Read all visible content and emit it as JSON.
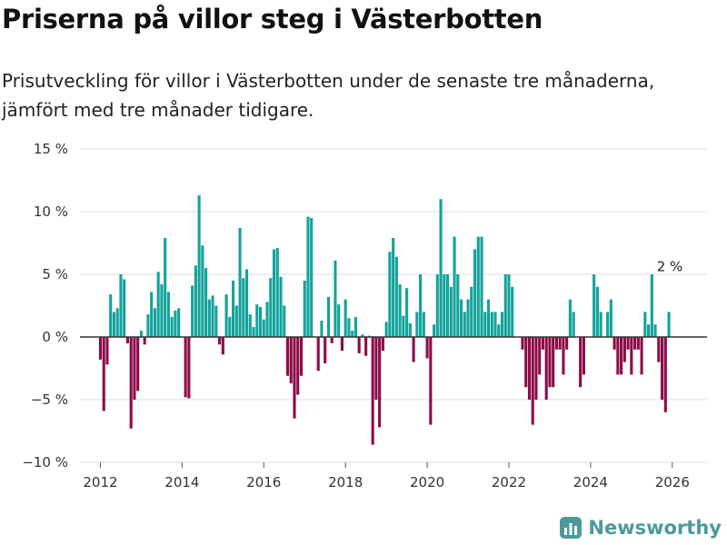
{
  "title": "Priserna på villor steg i Västerbotten",
  "subtitle": "Prisutveckling för villor i Västerbotten under de senaste tre månaderna, jämfört med tre månader tidigare.",
  "brand": "Newsworthy",
  "colors": {
    "positive": "#13a39b",
    "negative": "#8e0a47",
    "grid": "#dcdcdc",
    "zero": "#333333",
    "brand": "#4d9a9a"
  },
  "chart_data": {
    "type": "bar",
    "title": "Priserna på villor steg i Västerbotten",
    "xlabel": "",
    "ylabel": "",
    "start": [
      2012,
      1
    ],
    "ylim": [
      -10,
      15
    ],
    "yticks": [
      15,
      10,
      5,
      0,
      -5,
      -10
    ],
    "ytick_labels": [
      "15 %",
      "10 %",
      "5 %",
      "0 %",
      "−5 %",
      "−10 %"
    ],
    "xticks": [
      2012,
      2014,
      2016,
      2018,
      2020,
      2022,
      2024,
      2026
    ],
    "xtick_labels": [
      "2012",
      "2014",
      "2016",
      "2018",
      "2020",
      "2022",
      "2024",
      "2026"
    ],
    "values": [
      -1.8,
      -5.9,
      -2.2,
      3.4,
      2.0,
      2.3,
      5.0,
      4.6,
      -0.5,
      -7.3,
      -5.0,
      -4.3,
      0.5,
      -0.6,
      1.8,
      3.6,
      2.3,
      5.2,
      4.2,
      7.9,
      3.6,
      1.6,
      2.1,
      2.3,
      0.0,
      -4.8,
      -4.9,
      4.1,
      5.7,
      11.3,
      7.3,
      5.5,
      3.0,
      3.3,
      2.5,
      -0.6,
      -1.4,
      3.4,
      1.6,
      4.5,
      2.5,
      8.7,
      4.7,
      5.4,
      1.8,
      0.8,
      2.6,
      2.4,
      1.4,
      2.8,
      4.7,
      7.0,
      7.1,
      4.8,
      2.5,
      -3.1,
      -3.7,
      -6.5,
      -4.6,
      -3.1,
      4.5,
      9.6,
      9.5,
      0.0,
      -2.7,
      1.3,
      -2.1,
      3.2,
      -0.5,
      6.1,
      2.6,
      -1.1,
      3.0,
      1.5,
      0.5,
      1.6,
      -1.3,
      0.2,
      -1.5,
      0.1,
      -8.6,
      -5.0,
      -7.2,
      -1.1,
      1.2,
      6.8,
      7.9,
      6.4,
      4.2,
      1.7,
      3.9,
      1.1,
      -2.0,
      2.0,
      5.0,
      2.0,
      -1.7,
      -7.0,
      1.0,
      5.0,
      11.0,
      5.0,
      5.0,
      4.0,
      8.0,
      5.0,
      3.0,
      2.0,
      3.0,
      4.0,
      7.0,
      8.0,
      8.0,
      2.0,
      3.0,
      2.0,
      2.0,
      1.0,
      2.0,
      5.0,
      5.0,
      4.0,
      0.0,
      0.0,
      -1.0,
      -4.0,
      -5.0,
      -7.0,
      -5.0,
      -3.0,
      -1.0,
      -5.0,
      -4.0,
      -4.0,
      -1.0,
      -1.0,
      -3.0,
      -1.0,
      3.0,
      2.0,
      0.0,
      -4.0,
      -3.0,
      0.0,
      0.0,
      5.0,
      4.0,
      2.0,
      0.0,
      2.0,
      3.0,
      -1.0,
      -3.0,
      -3.0,
      -2.0,
      -1.0,
      -3.0,
      -1.0,
      -1.0,
      -3.0,
      2.0,
      1.0,
      5.0,
      1.0,
      -2.0,
      -5.0,
      -6.0,
      2.0
    ],
    "annotation": {
      "label": "2 %",
      "value": 2.0
    }
  }
}
